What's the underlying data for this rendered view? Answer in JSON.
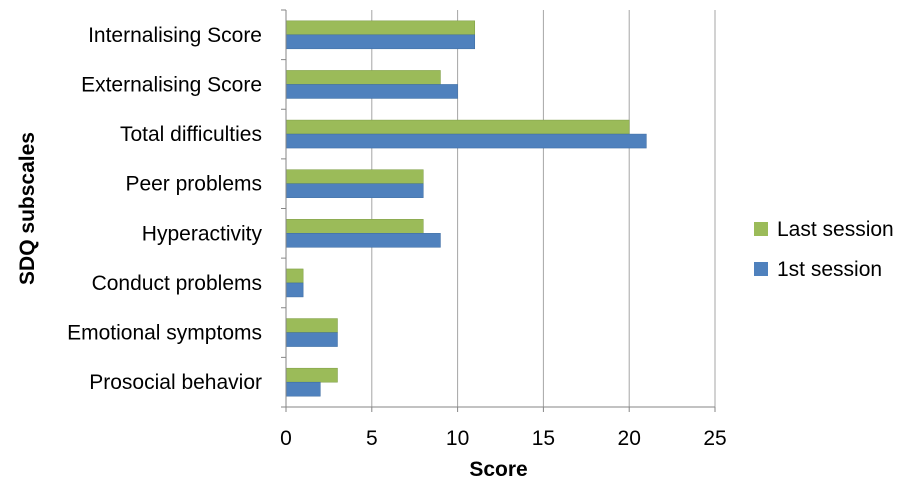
{
  "chart_data": {
    "type": "bar",
    "orientation": "horizontal",
    "categories": [
      "Internalising Score",
      "Externalising Score",
      "Total difficulties",
      "Peer problems",
      "Hyperactivity",
      "Conduct problems",
      "Emotional symptoms",
      "Prosocial behavior"
    ],
    "series": [
      {
        "name": "Last session",
        "color": "#9bbb59",
        "values": [
          11,
          9,
          20,
          8,
          8,
          1,
          3,
          3
        ]
      },
      {
        "name": "1st session",
        "color": "#4f81bd",
        "values": [
          11,
          10,
          21,
          8,
          9,
          1,
          3,
          2
        ]
      }
    ],
    "xlabel": "Score",
    "ylabel": "SDQ subscales",
    "xlim": [
      0,
      25
    ],
    "xticks": [
      0,
      5,
      10,
      15,
      20,
      25
    ],
    "grid": "vertical",
    "legend_position": "right"
  }
}
